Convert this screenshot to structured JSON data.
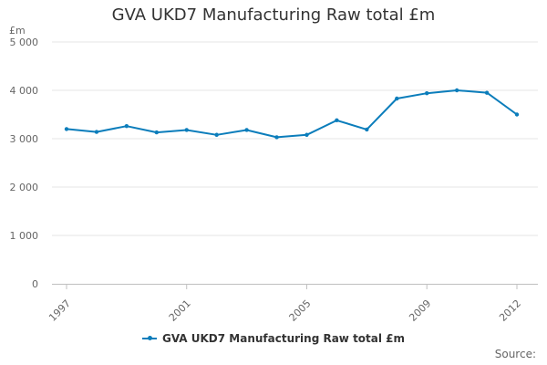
{
  "chart_data": {
    "type": "line",
    "title": "GVA UKD7 Manufacturing Raw total £m",
    "ylabel": "£m",
    "xlabel": "",
    "x": [
      1997,
      1998,
      1999,
      2000,
      2001,
      2002,
      2003,
      2004,
      2005,
      2006,
      2007,
      2008,
      2009,
      2010,
      2011,
      2012
    ],
    "series": [
      {
        "name": "GVA UKD7 Manufacturing Raw total £m",
        "values": [
          3200,
          3140,
          3260,
          3130,
          3180,
          3080,
          3180,
          3030,
          3080,
          3380,
          3190,
          3830,
          3940,
          4000,
          3950,
          3500
        ]
      }
    ],
    "x_tick_labels": [
      "1997",
      "2001",
      "2005",
      "2009",
      "2012"
    ],
    "y_ticks": [
      0,
      1000,
      2000,
      3000,
      4000,
      5000
    ],
    "y_tick_labels": [
      "0",
      "1 000",
      "2 000",
      "3 000",
      "4 000",
      "5 000"
    ],
    "ylim": [
      0,
      5000
    ],
    "xlim": [
      1997,
      2012
    ],
    "grid": "horizontal",
    "legend_position": "bottom",
    "color": "#0b7dbb"
  },
  "source_label": "Source:"
}
